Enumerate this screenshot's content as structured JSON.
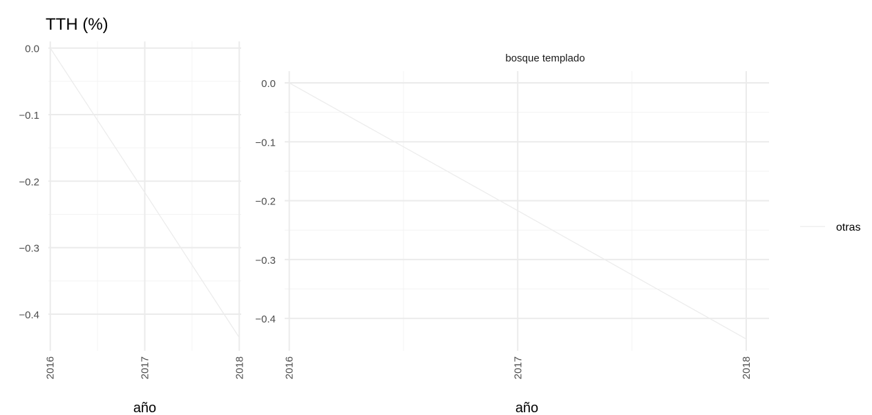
{
  "title": "TTH (%)",
  "colors": {
    "series_line": "#ececec",
    "grid_major": "#ebebeb",
    "grid_minor": "#f3f3f3",
    "tick_text": "#4d4d4d",
    "background": "#ffffff"
  },
  "legend": {
    "position": "right",
    "entries": [
      "otras"
    ]
  },
  "chart_data": [
    {
      "type": "line",
      "title": "",
      "xlabel": "año",
      "ylabel": "",
      "x": [
        2016,
        2017,
        2018
      ],
      "xlim": [
        2015.98,
        2018.02
      ],
      "ylim": [
        -0.455,
        0.01
      ],
      "x_ticks": [
        "2016",
        "2017",
        "2018"
      ],
      "y_ticks": [
        "0.0",
        "-0.1",
        "-0.2",
        "-0.3",
        "-0.4"
      ],
      "grid": true,
      "series": [
        {
          "name": "otras",
          "values": [
            0.0,
            -0.217,
            -0.435
          ]
        }
      ]
    },
    {
      "type": "line",
      "title": "bosque templado",
      "xlabel": "año",
      "ylabel": "",
      "x": [
        2016,
        2017,
        2018
      ],
      "xlim": [
        2015.98,
        2018.1
      ],
      "ylim": [
        -0.455,
        0.02
      ],
      "x_ticks": [
        "2016",
        "2017",
        "2018"
      ],
      "y_ticks": [
        "0.0",
        "-0.1",
        "-0.2",
        "-0.3",
        "-0.4"
      ],
      "grid": true,
      "series": [
        {
          "name": "otras",
          "values": [
            0.0,
            -0.217,
            -0.435
          ]
        }
      ]
    }
  ]
}
